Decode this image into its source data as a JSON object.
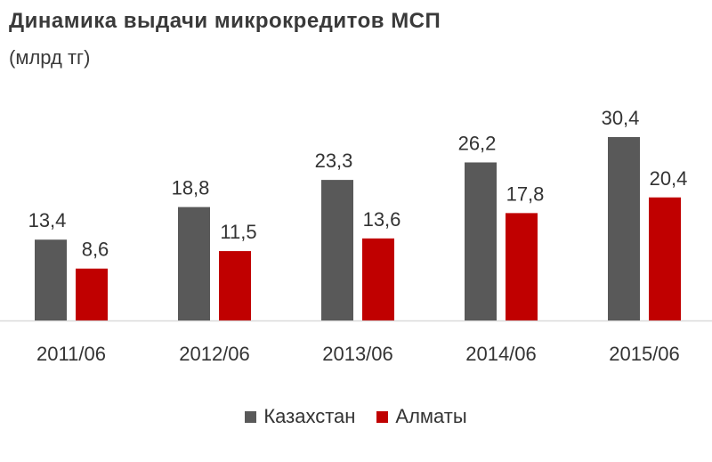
{
  "chart_data": {
    "type": "bar",
    "title": "Динамика выдачи микрокредитов МСП",
    "subtitle": "(млрд тг)",
    "xlabel": "",
    "ylabel": "",
    "categories": [
      "2011/06",
      "2012/06",
      "2013/06",
      "2014/06",
      "2015/06"
    ],
    "series": [
      {
        "name": "Казахстан",
        "color": "#595959",
        "values": [
          13.4,
          18.8,
          23.3,
          26.2,
          30.4
        ],
        "labels": [
          "13,4",
          "18,8",
          "23,3",
          "26,2",
          "30,4"
        ]
      },
      {
        "name": "Алматы",
        "color": "#c00000",
        "values": [
          8.6,
          11.5,
          13.6,
          17.8,
          20.4
        ],
        "labels": [
          "8,6",
          "11,5",
          "13,6",
          "17,8",
          "20,4"
        ]
      }
    ],
    "ylim": [
      0,
      30.4
    ],
    "grid": false,
    "legend_position": "bottom",
    "axis_color": "#d9d9d9"
  }
}
